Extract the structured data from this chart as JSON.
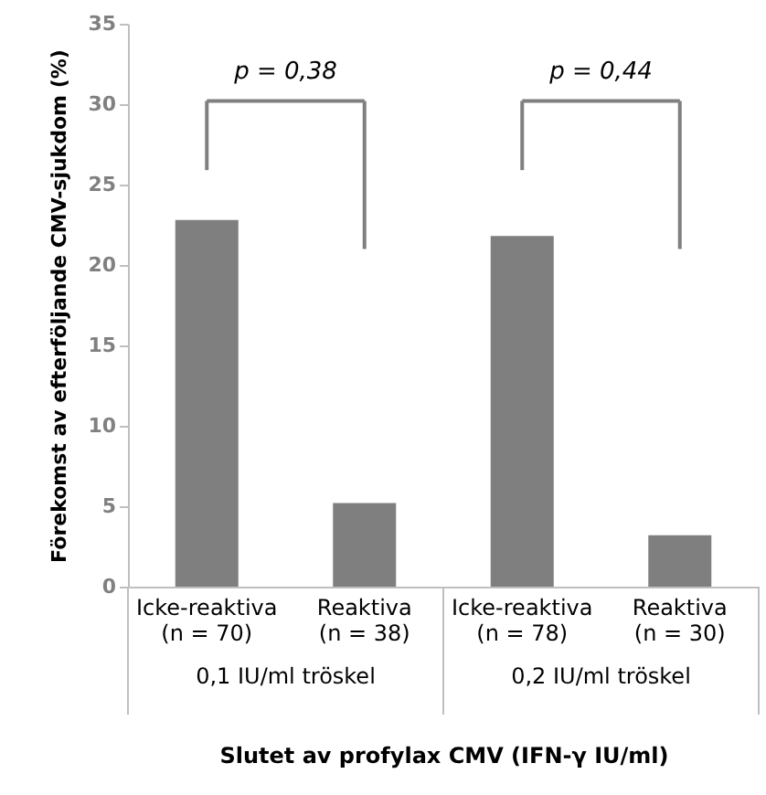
{
  "chart_data": {
    "type": "bar",
    "categories": [
      "Icke-reaktiva\n(n = 70)",
      "Reaktiva\n(n = 38)",
      "Icke-reaktiva\n(n = 78)",
      "Reaktiva\n(n = 30)"
    ],
    "values": [
      22.8,
      5.2,
      21.8,
      3.2
    ],
    "color": "#7f7f7f",
    "ylim": [
      0,
      35
    ],
    "yticks": [
      0,
      5,
      10,
      15,
      20,
      25,
      30,
      35
    ],
    "ylabel": "Förekomst av efterföljande CMV-sjukdom (%)",
    "xlabel": "Slutet av profylax CMV (IFN-γ IU/ml)",
    "annotations": [
      "p = 0,38",
      "p = 0,44",
      "0,1 IU/ml tröskel",
      "0,2 IU/ml tröskel"
    ],
    "grid": false
  }
}
